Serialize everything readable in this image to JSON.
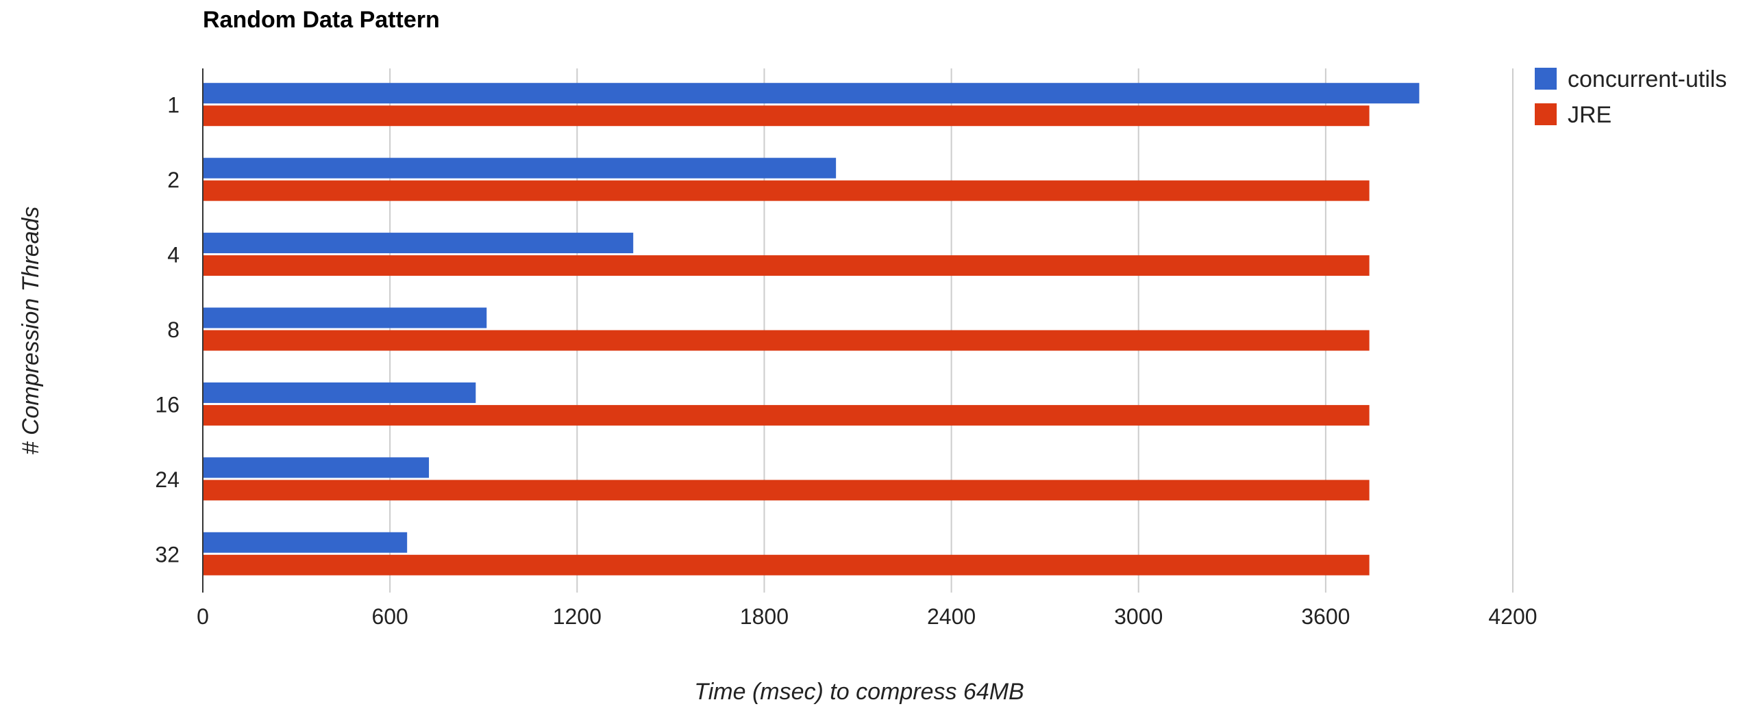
{
  "chart_data": {
    "type": "bar",
    "orientation": "horizontal",
    "title": "Random Data Pattern",
    "xlabel": "Time (msec) to compress 64MB",
    "ylabel": "# Compression Threads",
    "categories": [
      "1",
      "2",
      "4",
      "8",
      "16",
      "24",
      "32"
    ],
    "series": [
      {
        "name": "concurrent-utils",
        "color": "#3366cc",
        "values": [
          3900,
          2030,
          1380,
          910,
          875,
          725,
          655
        ]
      },
      {
        "name": "JRE",
        "color": "#dc3912",
        "values": [
          3740,
          3740,
          3740,
          3740,
          3740,
          3740,
          3740
        ]
      }
    ],
    "xlim": [
      0,
      4200
    ],
    "xticks": [
      "0",
      "600",
      "1200",
      "1800",
      "2400",
      "3000",
      "3600",
      "4200"
    ],
    "grid": true,
    "legend_position": "right"
  }
}
